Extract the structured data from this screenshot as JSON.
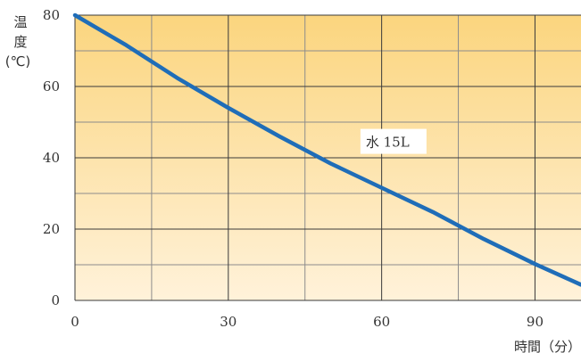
{
  "chart_data": {
    "type": "line",
    "title": "",
    "xlabel": "時間（分）",
    "ylabel_chars": [
      "温",
      "度"
    ],
    "ylabel_unit": "(℃)",
    "xlim": [
      0,
      99
    ],
    "ylim": [
      0,
      80
    ],
    "x_ticks": [
      0,
      30,
      60,
      90
    ],
    "x_tick_labels": [
      "0",
      "30",
      "60",
      "90"
    ],
    "y_ticks": [
      0,
      20,
      40,
      60,
      80
    ],
    "y_tick_labels": [
      "0",
      "20",
      "40",
      "60",
      "80"
    ],
    "x_grid_minor": [
      15,
      45,
      75
    ],
    "y_grid_minor": [
      10,
      30,
      50,
      70
    ],
    "grid": true,
    "background_gradient": [
      "#fbd57e",
      "#fff2da"
    ],
    "series": [
      {
        "name": "水 15L",
        "color": "#1f6db8",
        "x": [
          0,
          10,
          20,
          30,
          40,
          50,
          60,
          70,
          80,
          90,
          99
        ],
        "y": [
          80,
          71.6,
          62.4,
          54,
          46,
          38.4,
          31.6,
          24.8,
          17.2,
          10.2,
          4.4
        ]
      }
    ],
    "annotations": [
      {
        "text": "水 15L",
        "x": 56.2,
        "y": 44.6
      }
    ]
  }
}
